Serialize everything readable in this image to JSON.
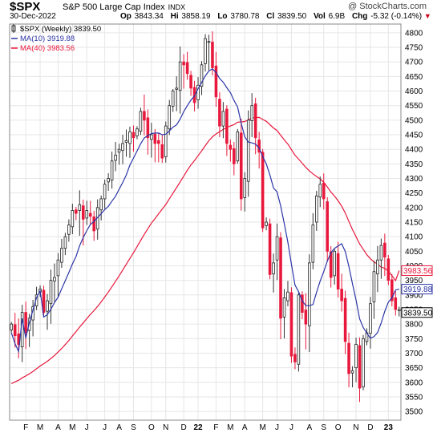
{
  "header": {
    "ticker": "$SPX",
    "name": "S&P 500 Large Cap Index",
    "exchange": "INDX",
    "brand": "@ StockCharts.com",
    "date": "30-Dec-2022",
    "open_label": "Op",
    "open": "3843.34",
    "high_label": "Hi",
    "high": "3858.19",
    "low_label": "Lo",
    "low": "3780.78",
    "close_label": "Cl",
    "close": "3839.50",
    "vol_label": "Vol",
    "vol": "6.9B",
    "chg_label": "Chg",
    "chg": "-5.32 (-0.14%)",
    "chg_arrow": "▼"
  },
  "legend": [
    {
      "label": "$SPX (Weekly) 3839.50",
      "color": "#000000"
    },
    {
      "label": "MA(10) 3919.88",
      "color": "#2b35a6"
    },
    {
      "label": "MA(40) 3983.56",
      "color": "#e8183c"
    }
  ],
  "colors": {
    "up": "#000000",
    "down": "#e8183c",
    "ma10": "#2b35a6",
    "ma40": "#e8183c",
    "grid": "#e6e6e6"
  },
  "chart_data": {
    "type": "candlestick",
    "title": "$SPX S&P 500 Large Cap Index",
    "ylim": [
      3470,
      4830
    ],
    "yticks": [
      3500,
      3550,
      3600,
      3650,
      3700,
      3750,
      3800,
      3850,
      3900,
      3950,
      4000,
      4050,
      4100,
      4150,
      4200,
      4250,
      4300,
      4350,
      4400,
      4450,
      4500,
      4550,
      4600,
      4650,
      4700,
      4750,
      4800
    ],
    "price_tags": [
      {
        "label": "3983.56",
        "value": 3983.56,
        "color": "#e8183c"
      },
      {
        "label": "3919.88",
        "value": 3919.88,
        "color": "#2b35a6"
      },
      {
        "label": "3839.50",
        "value": 3839.5,
        "color": "#000000"
      }
    ],
    "x_labels": [
      {
        "label": "F",
        "week": 4
      },
      {
        "label": "M",
        "week": 8
      },
      {
        "label": "A",
        "week": 13
      },
      {
        "label": "M",
        "week": 17
      },
      {
        "label": "J",
        "week": 21
      },
      {
        "label": "J",
        "week": 26
      },
      {
        "label": "A",
        "week": 30
      },
      {
        "label": "S",
        "week": 34
      },
      {
        "label": "O",
        "week": 39
      },
      {
        "label": "N",
        "week": 43
      },
      {
        "label": "D",
        "week": 48
      },
      {
        "label": "22",
        "week": 52
      },
      {
        "label": "F",
        "week": 57
      },
      {
        "label": "M",
        "week": 61
      },
      {
        "label": "A",
        "week": 65
      },
      {
        "label": "M",
        "week": 70
      },
      {
        "label": "J",
        "week": 74
      },
      {
        "label": "J",
        "week": 78
      },
      {
        "label": "A",
        "week": 83
      },
      {
        "label": "S",
        "week": 87
      },
      {
        "label": "O",
        "week": 91
      },
      {
        "label": "N",
        "week": 96
      },
      {
        "label": "D",
        "week": 100
      },
      {
        "label": "23",
        "week": 105
      }
    ],
    "weekly_close": [
      3800,
      3760,
      3730,
      3840,
      3770,
      3820,
      3860,
      3900,
      3920,
      3840,
      3880,
      3950,
      3960,
      4020,
      4060,
      4100,
      4140,
      4190,
      4180,
      4210,
      4160,
      4190,
      4170,
      4120,
      4200,
      4230,
      4280,
      4300,
      4360,
      4380,
      4400,
      4420,
      4430,
      4460,
      4440,
      4470,
      4530,
      4500,
      4440,
      4450,
      4420,
      4420,
      4370,
      4480,
      4550,
      4600,
      4610,
      4700,
      4690,
      4660,
      4610,
      4560,
      4620,
      4690,
      4780,
      4770,
      4680,
      4580,
      4480,
      4530,
      4420,
      4400,
      4350,
      4460,
      4230,
      4300,
      4500,
      4550,
      4440,
      4390,
      4130,
      4150,
      3970,
      4010,
      4100,
      3820,
      3890,
      3910,
      3690,
      3670,
      3900,
      3840,
      3800,
      4010,
      4140,
      4240,
      4280,
      4230,
      4050,
      3960,
      4050,
      3920,
      3880,
      3740,
      3630,
      3640,
      3730,
      3580,
      3750,
      3770,
      3870,
      3980,
      4020,
      4070,
      4030,
      3950,
      3880,
      3850,
      3850
    ],
    "ma10_final": 3919.88,
    "ma40_final": 3983.56,
    "last_close": 3839.5
  }
}
